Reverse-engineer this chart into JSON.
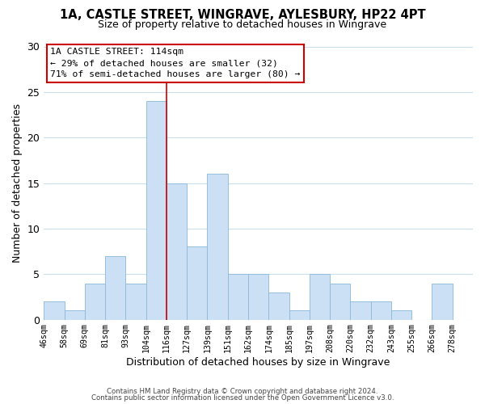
{
  "title_line1": "1A, CASTLE STREET, WINGRAVE, AYLESBURY, HP22 4PT",
  "title_line2": "Size of property relative to detached houses in Wingrave",
  "xlabel": "Distribution of detached houses by size in Wingrave",
  "ylabel": "Number of detached properties",
  "bin_labels": [
    "46sqm",
    "58sqm",
    "69sqm",
    "81sqm",
    "93sqm",
    "104sqm",
    "116sqm",
    "127sqm",
    "139sqm",
    "151sqm",
    "162sqm",
    "174sqm",
    "185sqm",
    "197sqm",
    "208sqm",
    "220sqm",
    "232sqm",
    "243sqm",
    "255sqm",
    "266sqm",
    "278sqm"
  ],
  "bar_heights": [
    2,
    1,
    4,
    7,
    4,
    24,
    15,
    8,
    16,
    5,
    5,
    3,
    1,
    5,
    4,
    2,
    2,
    1,
    0,
    4,
    0
  ],
  "bar_color": "#cce0f5",
  "bar_edge_color": "#8ab8d8",
  "annotation_title": "1A CASTLE STREET: 114sqm",
  "annotation_line1": "← 29% of detached houses are smaller (32)",
  "annotation_line2": "71% of semi-detached houses are larger (80) →",
  "annotation_box_color": "#ffffff",
  "annotation_box_edge": "#cc0000",
  "red_line_color": "#cc0000",
  "ylim": [
    0,
    30
  ],
  "yticks": [
    0,
    5,
    10,
    15,
    20,
    25,
    30
  ],
  "footer_line1": "Contains HM Land Registry data © Crown copyright and database right 2024.",
  "footer_line2": "Contains public sector information licensed under the Open Government Licence v3.0.",
  "background_color": "#ffffff",
  "grid_color": "#c8dff0"
}
